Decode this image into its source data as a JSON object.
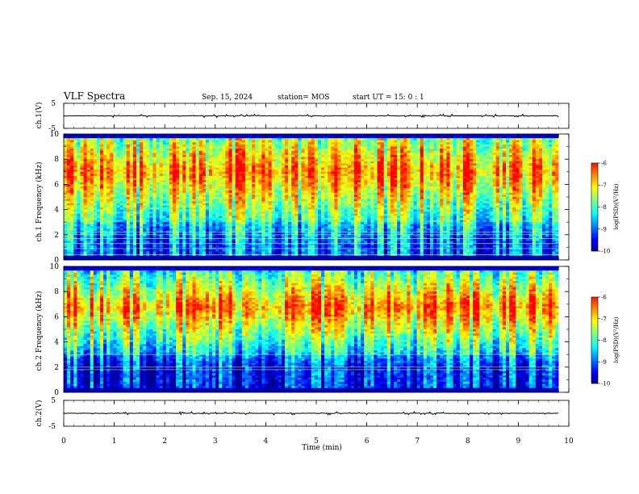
{
  "header": {
    "title": "VLF Spectra",
    "date": "Sep. 15, 2024",
    "station": "station= MOS",
    "start": "start  UT =   15: 0  : 1"
  },
  "chart_data": [
    {
      "id": "ch1_waveform",
      "type": "line",
      "ylabel": "ch.1(V)",
      "ylim": [
        -5,
        5
      ],
      "yticks": [
        "5",
        "-5"
      ],
      "xlim": [
        0,
        10
      ],
      "series": [
        {
          "values_summary": "near-flat trace around 0 V with small spikes",
          "level": 0
        }
      ]
    },
    {
      "id": "ch1_spectrogram",
      "type": "heatmap",
      "ylabel": "ch.1  Frequency (kHz)",
      "ylim": [
        0,
        10
      ],
      "yticks": [
        "0",
        "2",
        "4",
        "6",
        "8",
        "10"
      ],
      "xlim": [
        0,
        10
      ],
      "data_end_min": 9.8,
      "colorbar": {
        "label": "log(PSD)(V²/Hz)",
        "range": [
          -10,
          -6
        ],
        "ticks": [
          "-6",
          "-7",
          "-8",
          "-9",
          "-10"
        ]
      },
      "band_peak_khz": [
        5,
        9
      ],
      "narrowband_lines_khz": [
        0.4,
        0.9,
        1.3,
        1.7,
        2.0,
        2.2
      ]
    },
    {
      "id": "ch2_spectrogram",
      "type": "heatmap",
      "ylabel": "ch.2  Frequency (kHz)",
      "ylim": [
        0,
        10
      ],
      "yticks": [
        "0",
        "2",
        "4",
        "6",
        "8",
        "10"
      ],
      "xlim": [
        0,
        10
      ],
      "data_end_min": 9.8,
      "colorbar": {
        "label": "log(PSD)(V²/Hz)",
        "range": [
          -10,
          -6
        ],
        "ticks": [
          "-6",
          "-7",
          "-8",
          "-9",
          "-10"
        ]
      },
      "band_peak_khz": [
        5.5,
        8
      ],
      "narrowband_lines_khz": [
        1.8,
        2.0,
        3.0
      ]
    },
    {
      "id": "ch2_waveform",
      "type": "line",
      "ylabel": "ch.2(V)",
      "ylim": [
        -5,
        5
      ],
      "yticks": [
        "5",
        "-5"
      ],
      "xlim": [
        0,
        10
      ],
      "series": [
        {
          "values_summary": "near-flat trace around 0 V",
          "level": 0
        }
      ]
    }
  ],
  "xaxis": {
    "label": "Time  (min)",
    "ticks": [
      "0",
      "1",
      "2",
      "3",
      "4",
      "5",
      "6",
      "7",
      "8",
      "9",
      "10"
    ]
  },
  "colors": {
    "jet": [
      "#00008f",
      "#0000ff",
      "#0080ff",
      "#00ffff",
      "#80ff80",
      "#ffff00",
      "#ff8000",
      "#ff0000",
      "#ffffff"
    ]
  }
}
